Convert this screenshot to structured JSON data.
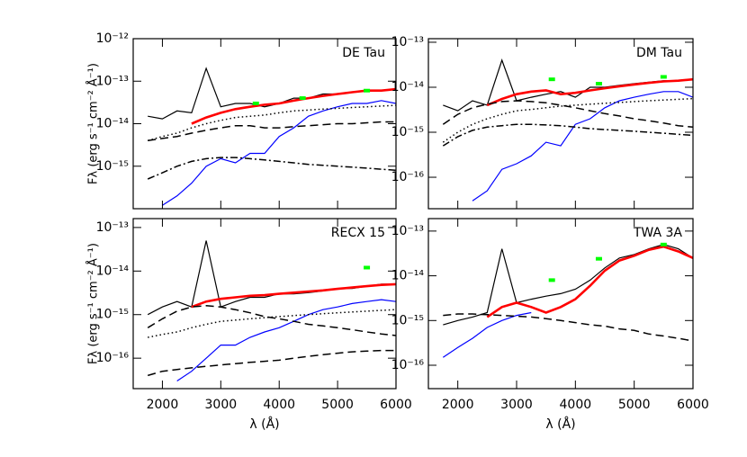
{
  "chart_data": [
    {
      "type": "line",
      "title": "DE Tau",
      "log_y": true,
      "x": [
        1750,
        2000,
        2250,
        2500,
        2750,
        3000,
        3250,
        3500,
        3750,
        4000,
        4250,
        4500,
        4750,
        5000,
        5250,
        5500,
        5750,
        6000
      ],
      "xlim": [
        1500,
        6000
      ],
      "xticks": [
        2000,
        3000,
        4000,
        5000,
        6000
      ],
      "xtick_labels": false,
      "ylim": [
        1e-16,
        1e-12
      ],
      "yticks": [
        {
          "value": 1e-12,
          "label": "10⁻¹²"
        },
        {
          "value": 1e-13,
          "label": "10⁻¹³"
        },
        {
          "value": 1e-14,
          "label": "10⁻¹⁴"
        },
        {
          "value": 1e-15,
          "label": "10⁻¹⁵"
        }
      ],
      "ylabel": "Fλ (erg s⁻¹ cm⁻² Å⁻¹)",
      "series": [
        {
          "color": "#000000",
          "style": "solid",
          "values": [
            1.5e-14,
            1.3e-14,
            2e-14,
            1.8e-14,
            2e-13,
            2.5e-14,
            3e-14,
            3e-14,
            2.5e-14,
            3e-14,
            4e-14,
            4e-14,
            5e-14,
            5e-14,
            5.5e-14,
            6e-14,
            6e-14,
            6.5e-14
          ]
        },
        {
          "color": "#ff0000",
          "style": "thick",
          "values": [
            null,
            null,
            null,
            1e-14,
            1.4e-14,
            1.8e-14,
            2.2e-14,
            2.5e-14,
            2.8e-14,
            3e-14,
            3.5e-14,
            4e-14,
            4.5e-14,
            5e-14,
            5.5e-14,
            6e-14,
            6e-14,
            6.5e-14
          ]
        },
        {
          "color": "#0000ff",
          "style": "solid",
          "values": [
            null,
            1.2e-16,
            2e-16,
            4e-16,
            1e-15,
            1.5e-15,
            1.2e-15,
            2e-15,
            2e-15,
            5e-15,
            8e-15,
            1.5e-14,
            2e-14,
            2.5e-14,
            3e-14,
            3e-14,
            3.5e-14,
            3e-14
          ]
        },
        {
          "color": "#000000",
          "style": "dotted",
          "values": [
            4e-15,
            5e-15,
            6e-15,
            8e-15,
            1e-14,
            1.2e-14,
            1.4e-14,
            1.5e-14,
            1.6e-14,
            1.8e-14,
            2e-14,
            2.1e-14,
            2.2e-14,
            2.3e-14,
            2.4e-14,
            2.5e-14,
            2.6e-14,
            2.7e-14
          ]
        },
        {
          "color": "#000000",
          "style": "dashed",
          "values": [
            4e-15,
            4.5e-15,
            5e-15,
            6e-15,
            7e-15,
            8e-15,
            9e-15,
            9e-15,
            8e-15,
            8e-15,
            8.5e-15,
            9e-15,
            9.5e-15,
            1e-14,
            1e-14,
            1.05e-14,
            1.1e-14,
            1.1e-14
          ]
        },
        {
          "color": "#000000",
          "style": "dashdot",
          "values": [
            5e-16,
            7e-16,
            1e-15,
            1.3e-15,
            1.5e-15,
            1.6e-15,
            1.6e-15,
            1.5e-15,
            1.4e-15,
            1.3e-15,
            1.2e-15,
            1.1e-15,
            1.05e-15,
            1e-15,
            9.5e-16,
            9e-16,
            8.5e-16,
            8e-16
          ]
        }
      ],
      "points": {
        "color": "#00ff00",
        "x": [
          3600,
          4400,
          5500
        ],
        "values": [
          3e-14,
          4e-14,
          6e-14
        ]
      }
    },
    {
      "type": "line",
      "title": "DM Tau",
      "log_y": true,
      "x": [
        1750,
        2000,
        2250,
        2500,
        2750,
        3000,
        3250,
        3500,
        3750,
        4000,
        4250,
        4500,
        4750,
        5000,
        5250,
        5500,
        5750,
        6000
      ],
      "xlim": [
        1500,
        6000
      ],
      "xticks": [
        2000,
        3000,
        4000,
        5000,
        6000
      ],
      "xtick_labels": false,
      "ylim": [
        2e-17,
        1.2e-13
      ],
      "yticks": [
        {
          "value": 1e-13,
          "label": "10⁻¹³"
        },
        {
          "value": 1e-14,
          "label": "10⁻¹⁴"
        },
        {
          "value": 1e-15,
          "label": "10⁻¹⁵"
        },
        {
          "value": 1e-16,
          "label": "10⁻¹⁶"
        }
      ],
      "series": [
        {
          "color": "#000000",
          "style": "solid",
          "values": [
            4e-15,
            3e-15,
            5e-15,
            4e-15,
            4e-14,
            5e-15,
            6e-15,
            7e-15,
            8e-15,
            6e-15,
            1e-14,
            1e-14,
            1.1e-14,
            1.2e-14,
            1.3e-14,
            1.4e-14,
            1.4e-14,
            1.5e-14
          ]
        },
        {
          "color": "#ff0000",
          "style": "thick",
          "values": [
            null,
            null,
            null,
            4e-15,
            5.5e-15,
            7e-15,
            8e-15,
            8.5e-15,
            7e-15,
            7.5e-15,
            8.5e-15,
            9.5e-15,
            1.05e-14,
            1.15e-14,
            1.25e-14,
            1.35e-14,
            1.4e-14,
            1.5e-14
          ]
        },
        {
          "color": "#0000ff",
          "style": "solid",
          "values": [
            null,
            null,
            3e-17,
            5e-17,
            1.5e-16,
            2e-16,
            3e-16,
            6e-16,
            5e-16,
            1.5e-15,
            2e-15,
            3.5e-15,
            5e-15,
            6e-15,
            7e-15,
            8e-15,
            8e-15,
            6e-15
          ]
        },
        {
          "color": "#000000",
          "style": "dashed",
          "values": [
            1.5e-15,
            2.5e-15,
            3.5e-15,
            4.2e-15,
            4.8e-15,
            5e-15,
            4.8e-15,
            4.5e-15,
            4e-15,
            3.5e-15,
            3e-15,
            2.6e-15,
            2.3e-15,
            2e-15,
            1.8e-15,
            1.6e-15,
            1.4e-15,
            1.3e-15
          ]
        },
        {
          "color": "#000000",
          "style": "dotted",
          "values": [
            6e-16,
            1e-15,
            1.5e-15,
            2e-15,
            2.5e-15,
            3e-15,
            3.2e-15,
            3.5e-15,
            3.8e-15,
            4e-15,
            4.2e-15,
            4.4e-15,
            4.6e-15,
            4.8e-15,
            5e-15,
            5.2e-15,
            5.4e-15,
            5.6e-15
          ]
        },
        {
          "color": "#000000",
          "style": "dashdot",
          "values": [
            5e-16,
            8e-16,
            1.1e-15,
            1.3e-15,
            1.4e-15,
            1.5e-15,
            1.5e-15,
            1.45e-15,
            1.4e-15,
            1.3e-15,
            1.2e-15,
            1.15e-15,
            1.1e-15,
            1.05e-15,
            1e-15,
            9.5e-16,
            9e-16,
            8.5e-16
          ]
        }
      ],
      "points": {
        "color": "#00ff00",
        "x": [
          3600,
          4400,
          5500
        ],
        "values": [
          1.5e-14,
          1.2e-14,
          1.7e-14
        ]
      }
    },
    {
      "type": "line",
      "title": "RECX 15",
      "log_y": true,
      "x": [
        1750,
        2000,
        2250,
        2500,
        2750,
        3000,
        3250,
        3500,
        3750,
        4000,
        4250,
        4500,
        4750,
        5000,
        5250,
        5500,
        5750,
        6000
      ],
      "xlim": [
        1500,
        6000
      ],
      "xticks": [
        2000,
        3000,
        4000,
        5000,
        6000
      ],
      "xtick_labels": true,
      "ylim": [
        2e-17,
        1.6e-13
      ],
      "yticks": [
        {
          "value": 1e-13,
          "label": "10⁻¹³"
        },
        {
          "value": 1e-14,
          "label": "10⁻¹⁴"
        },
        {
          "value": 1e-15,
          "label": "10⁻¹⁵"
        },
        {
          "value": 1e-16,
          "label": "10⁻¹⁶"
        }
      ],
      "xlabel": "λ (Å)",
      "ylabel": "Fλ (erg s⁻¹ cm⁻² Å⁻¹)",
      "series": [
        {
          "color": "#000000",
          "style": "solid",
          "values": [
            1e-15,
            1.5e-15,
            2e-15,
            1.5e-15,
            5e-14,
            1.5e-15,
            2e-15,
            2.5e-15,
            2.5e-15,
            3e-15,
            3e-15,
            3.2e-15,
            3.5e-15,
            4e-15,
            4e-15,
            4.5e-15,
            5e-15,
            5e-15
          ]
        },
        {
          "color": "#ff0000",
          "style": "thick",
          "values": [
            null,
            null,
            null,
            1.5e-15,
            2e-15,
            2.3e-15,
            2.5e-15,
            2.7e-15,
            2.8e-15,
            3e-15,
            3.2e-15,
            3.4e-15,
            3.6e-15,
            3.9e-15,
            4.2e-15,
            4.5e-15,
            4.8e-15,
            5e-15
          ]
        },
        {
          "color": "#0000ff",
          "style": "solid",
          "values": [
            null,
            null,
            3e-17,
            5e-17,
            1e-16,
            2e-16,
            2e-16,
            3e-16,
            4e-16,
            5e-16,
            7e-16,
            1e-15,
            1.3e-15,
            1.5e-15,
            1.8e-15,
            2e-15,
            2.2e-15,
            2e-15
          ]
        },
        {
          "color": "#000000",
          "style": "dashed",
          "values": [
            5e-16,
            8e-16,
            1.2e-15,
            1.5e-15,
            1.6e-15,
            1.5e-15,
            1.3e-15,
            1.1e-15,
            9e-16,
            8e-16,
            7e-16,
            6e-16,
            5.5e-16,
            5e-16,
            4.5e-16,
            4e-16,
            3.6e-16,
            3.3e-16
          ]
        },
        {
          "color": "#000000",
          "style": "dotted",
          "values": [
            3e-16,
            3.5e-16,
            4e-16,
            5e-16,
            6e-16,
            7e-16,
            7.5e-16,
            8e-16,
            8.5e-16,
            9e-16,
            9.5e-16,
            1e-15,
            1.05e-15,
            1.1e-15,
            1.15e-15,
            1.2e-15,
            1.25e-15,
            1.3e-15
          ]
        },
        {
          "color": "#000000",
          "style": "dashed",
          "values": [
            4e-17,
            5e-17,
            5.5e-17,
            6e-17,
            6.5e-17,
            7e-17,
            7.5e-17,
            8e-17,
            8.5e-17,
            9e-17,
            1e-16,
            1.1e-16,
            1.2e-16,
            1.3e-16,
            1.4e-16,
            1.45e-16,
            1.5e-16,
            1.5e-16
          ]
        }
      ],
      "points": {
        "color": "#00ff00",
        "x": [
          5500
        ],
        "values": [
          1.2e-14
        ]
      }
    },
    {
      "type": "line",
      "title": "TWA 3A",
      "log_y": true,
      "x": [
        1750,
        2000,
        2250,
        2500,
        2750,
        3000,
        3250,
        3500,
        3750,
        4000,
        4250,
        4500,
        4750,
        5000,
        5250,
        5500,
        5750,
        6000
      ],
      "xlim": [
        1500,
        6000
      ],
      "xticks": [
        2000,
        3000,
        4000,
        5000,
        6000
      ],
      "xtick_labels": true,
      "ylim": [
        3e-17,
        1.9e-13
      ],
      "yticks": [
        {
          "value": 1e-13,
          "label": "10⁻¹³"
        },
        {
          "value": 1e-14,
          "label": "10⁻¹⁴"
        },
        {
          "value": 1e-15,
          "label": "10⁻¹⁵"
        },
        {
          "value": 1e-16,
          "label": "10⁻¹⁶"
        }
      ],
      "xlabel": "λ (Å)",
      "series": [
        {
          "color": "#000000",
          "style": "solid",
          "values": [
            8e-16,
            1e-15,
            1.2e-15,
            1.5e-15,
            4e-14,
            2.5e-15,
            3e-15,
            3.5e-15,
            4e-15,
            5e-15,
            8e-15,
            1.5e-14,
            2.5e-14,
            3e-14,
            4e-14,
            5e-14,
            4e-14,
            2.5e-14
          ]
        },
        {
          "color": "#ff0000",
          "style": "thick",
          "values": [
            null,
            null,
            null,
            1.2e-15,
            2e-15,
            2.5e-15,
            2e-15,
            1.5e-15,
            2e-15,
            3e-15,
            6e-15,
            1.3e-14,
            2.2e-14,
            2.8e-14,
            3.8e-14,
            4.5e-14,
            3.5e-14,
            2.5e-14
          ]
        },
        {
          "color": "#0000ff",
          "style": "solid",
          "values": [
            1.5e-16,
            2.5e-16,
            4e-16,
            7e-16,
            1e-15,
            1.3e-15,
            1.5e-15,
            null,
            null,
            null,
            null,
            null,
            null,
            null,
            null,
            null,
            null,
            null
          ]
        },
        {
          "color": "#000000",
          "style": "dashed",
          "values": [
            1.3e-15,
            1.4e-15,
            1.4e-15,
            1.35e-15,
            1.3e-15,
            1.25e-15,
            1.2e-15,
            1.1e-15,
            1e-15,
            9e-16,
            8e-16,
            7.5e-16,
            6.5e-16,
            6e-16,
            5e-16,
            4.5e-16,
            4e-16,
            3.5e-16
          ]
        }
      ],
      "points": {
        "color": "#00ff00",
        "x": [
          3600,
          4400,
          5500
        ],
        "values": [
          8e-15,
          2.4e-14,
          5e-14
        ]
      }
    }
  ]
}
